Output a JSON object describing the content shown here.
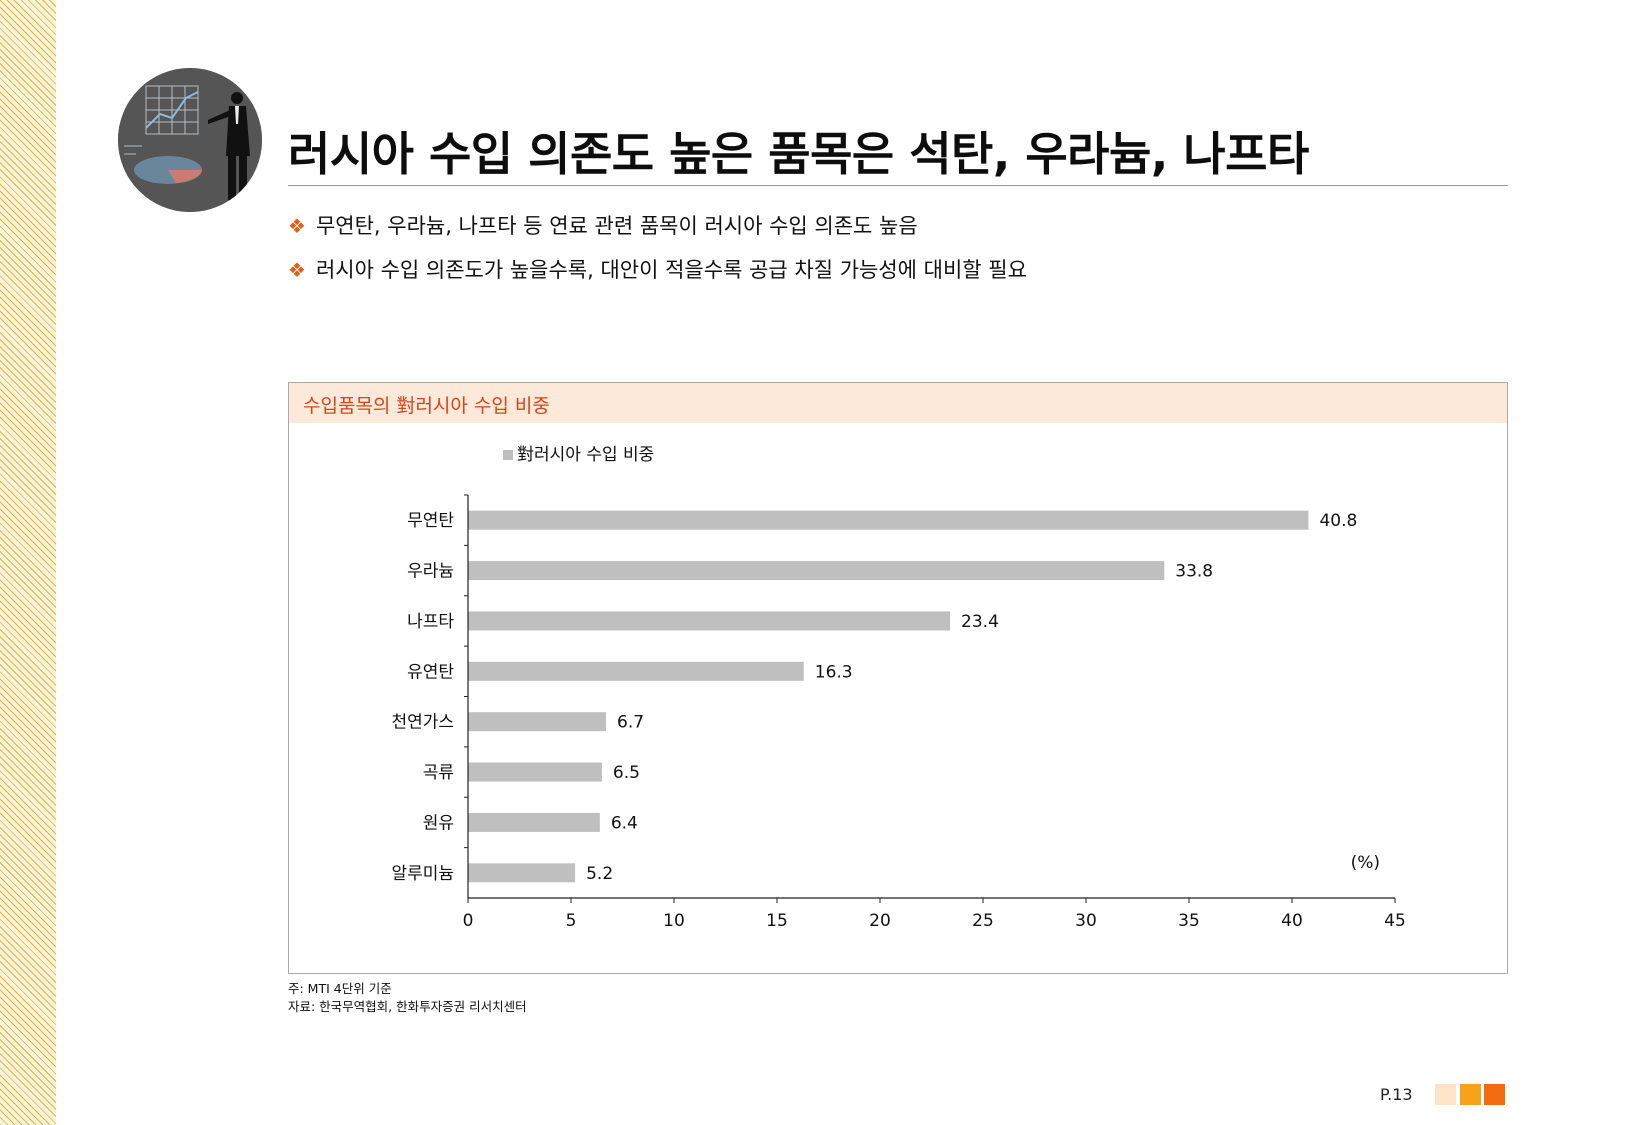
{
  "title": "러시아 수입 의존도 높은 품목은 석탄, 우라늄, 나프타",
  "bullets": [
    "무연탄, 우라늄, 나프타 등 연료 관련 품목이 러시아 수입 의존도 높음",
    "러시아 수입 의존도가 높을수록, 대안이 적을수록 공급 차질 가능성에 대비할 필요"
  ],
  "bullet_symbol": "❖",
  "chart_box_title": "수입품목의 對러시아 수입 비중",
  "chart_data": {
    "type": "bar",
    "orientation": "horizontal",
    "categories": [
      "무연탄",
      "우라늄",
      "나프타",
      "유연탄",
      "천연가스",
      "곡류",
      "원유",
      "알루미늄"
    ],
    "series": [
      {
        "name": "對러시아 수입 비중",
        "values": [
          40.8,
          33.8,
          23.4,
          16.3,
          6.7,
          6.5,
          6.4,
          5.2
        ]
      }
    ],
    "value_labels": [
      "40.8",
      "33.8",
      "23.4",
      "16.3",
      "6.7",
      "6.5",
      "6.4",
      "5.2"
    ],
    "x_ticks": [
      "0",
      "5",
      "10",
      "15",
      "20",
      "25",
      "30",
      "35",
      "40",
      "45"
    ],
    "xlim": [
      0,
      45
    ],
    "unit_label": "(%)",
    "legend": "top-left",
    "grid": false,
    "bar_color": "#bfbfbf"
  },
  "notes": [
    "주: MTI 4단위 기준",
    "자료: 한국무역협회, 한화투자증권 리서치센터"
  ],
  "page_number": "P.13",
  "colors": {
    "accent": "#e0601a",
    "chart_header_bg": "#fde9d9",
    "chart_title": "#d2461c"
  }
}
